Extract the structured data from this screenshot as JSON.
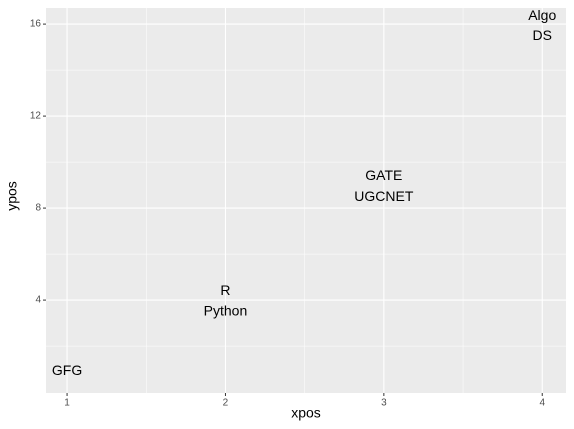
{
  "chart_data": {
    "type": "scatter",
    "x_label": "xpos",
    "y_label": "ypos",
    "points": [
      {
        "label": "GFG",
        "x": 1,
        "y": 0.91
      },
      {
        "label": "R",
        "x": 2,
        "y": 4.39
      },
      {
        "label": "Python",
        "x": 2,
        "y": 3.48
      },
      {
        "label": "GATE",
        "x": 3,
        "y": 9.39
      },
      {
        "label": "UGCNET",
        "x": 3,
        "y": 8.48
      },
      {
        "label": "Algo",
        "x": 4,
        "y": 16.35
      },
      {
        "label": "DS",
        "x": 4,
        "y": 15.48
      }
    ],
    "xlim": [
      0.867,
      4.15
    ],
    "ylim": [
      -0.04,
      16.7
    ],
    "xticks": [
      1,
      2,
      3,
      4
    ],
    "yticks": [
      4,
      8,
      12,
      16
    ],
    "xminor": [
      1.5,
      2.5,
      3.5
    ],
    "yminor": [
      2,
      6,
      10,
      14
    ],
    "panel_color": "#ebebeb",
    "grid_color": "#ffffff"
  }
}
